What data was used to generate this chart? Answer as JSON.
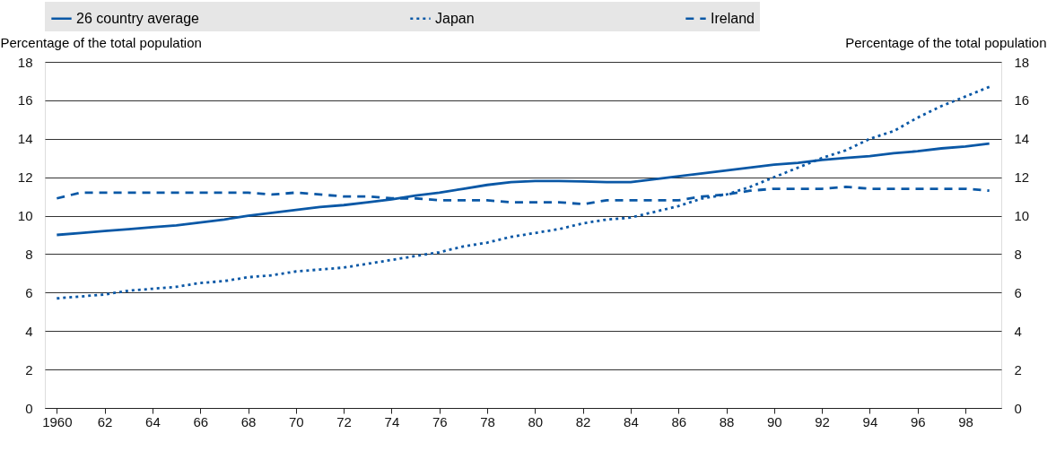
{
  "chart_data": {
    "type": "line",
    "ylabel": "Percentage of the total population",
    "y2label": "Percentage of the total population",
    "x": [
      1960,
      1961,
      1962,
      1963,
      1964,
      1965,
      1966,
      1967,
      1968,
      1969,
      1970,
      1971,
      1972,
      1973,
      1974,
      1975,
      1976,
      1977,
      1978,
      1979,
      1980,
      1981,
      1982,
      1983,
      1984,
      1985,
      1986,
      1987,
      1988,
      1989,
      1990,
      1991,
      1992,
      1993,
      1994,
      1995,
      1996,
      1997,
      1998,
      1999
    ],
    "series": [
      {
        "name": "26 country average",
        "color": "#0a58a6",
        "line_style": "solid",
        "values": [
          9.0,
          9.1,
          9.2,
          9.3,
          9.4,
          9.5,
          9.65,
          9.8,
          10.0,
          10.15,
          10.3,
          10.45,
          10.55,
          10.7,
          10.85,
          11.05,
          11.2,
          11.4,
          11.6,
          11.75,
          11.8,
          11.8,
          11.78,
          11.75,
          11.75,
          11.9,
          12.05,
          12.2,
          12.35,
          12.5,
          12.65,
          12.75,
          12.9,
          13.0,
          13.1,
          13.25,
          13.35,
          13.5,
          13.6,
          13.75
        ]
      },
      {
        "name": "Japan",
        "color": "#0a58a6",
        "line_style": "dotted",
        "values": [
          5.7,
          5.8,
          5.9,
          6.1,
          6.2,
          6.3,
          6.5,
          6.6,
          6.8,
          6.9,
          7.1,
          7.2,
          7.3,
          7.5,
          7.7,
          7.9,
          8.1,
          8.4,
          8.6,
          8.9,
          9.1,
          9.3,
          9.6,
          9.8,
          9.9,
          10.2,
          10.5,
          10.9,
          11.1,
          11.5,
          12.0,
          12.5,
          13.0,
          13.4,
          14.0,
          14.4,
          15.1,
          15.7,
          16.2,
          16.7
        ]
      },
      {
        "name": "Ireland",
        "color": "#0a58a6",
        "line_style": "dashed",
        "values": [
          10.9,
          11.2,
          11.2,
          11.2,
          11.2,
          11.2,
          11.2,
          11.2,
          11.2,
          11.1,
          11.2,
          11.1,
          11.0,
          11.0,
          10.9,
          10.9,
          10.8,
          10.8,
          10.8,
          10.7,
          10.7,
          10.7,
          10.6,
          10.8,
          10.8,
          10.8,
          10.8,
          11.0,
          11.1,
          11.3,
          11.4,
          11.4,
          11.4,
          11.5,
          11.4,
          11.4,
          11.4,
          11.4,
          11.4,
          11.3
        ]
      }
    ],
    "xlim": [
      1959.5,
      1999.5
    ],
    "xticks": [
      {
        "value": 1960,
        "label": "1960"
      },
      {
        "value": 1962,
        "label": "62"
      },
      {
        "value": 1964,
        "label": "64"
      },
      {
        "value": 1966,
        "label": "66"
      },
      {
        "value": 1968,
        "label": "68"
      },
      {
        "value": 1970,
        "label": "70"
      },
      {
        "value": 1972,
        "label": "72"
      },
      {
        "value": 1974,
        "label": "74"
      },
      {
        "value": 1976,
        "label": "76"
      },
      {
        "value": 1978,
        "label": "78"
      },
      {
        "value": 1980,
        "label": "80"
      },
      {
        "value": 1982,
        "label": "82"
      },
      {
        "value": 1984,
        "label": "84"
      },
      {
        "value": 1986,
        "label": "86"
      },
      {
        "value": 1988,
        "label": "88"
      },
      {
        "value": 1990,
        "label": "90"
      },
      {
        "value": 1992,
        "label": "92"
      },
      {
        "value": 1994,
        "label": "94"
      },
      {
        "value": 1996,
        "label": "96"
      },
      {
        "value": 1998,
        "label": "98"
      }
    ],
    "ylim": [
      0,
      18
    ],
    "yticks": [
      0,
      2,
      4,
      6,
      8,
      10,
      12,
      14,
      16,
      18
    ],
    "y2lim": [
      0,
      18
    ],
    "y2ticks": [
      0,
      2,
      4,
      6,
      8,
      10,
      12,
      14,
      16,
      18
    ],
    "grid": "y",
    "legend": "top"
  }
}
